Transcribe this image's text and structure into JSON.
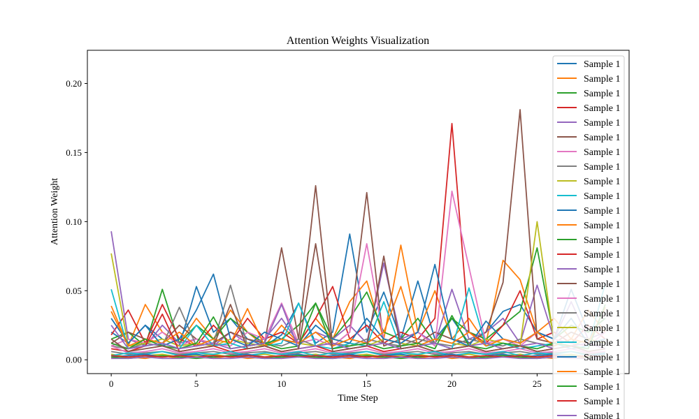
{
  "chart_data": {
    "type": "line",
    "title": "Attention Weights Visualization",
    "xlabel": "Time Step",
    "ylabel": "Attention Weight",
    "xlim": [
      -1.4,
      30.4
    ],
    "ylim": [
      -0.01,
      0.224
    ],
    "xticks": [
      0,
      5,
      10,
      15,
      20,
      25
    ],
    "xtick_labels": [
      "0",
      "5",
      "10",
      "15",
      "20",
      "25"
    ],
    "yticks": [
      0.0,
      0.05,
      0.1,
      0.15,
      0.2
    ],
    "ytick_labels": [
      "0.00",
      "0.05",
      "0.10",
      "0.15",
      "0.20"
    ],
    "grid": false,
    "legend_position": "top-right",
    "x": [
      0,
      1,
      2,
      3,
      4,
      5,
      6,
      7,
      8,
      9,
      10,
      11,
      12,
      13,
      14,
      15,
      16,
      17,
      18,
      19,
      20,
      21,
      22,
      23,
      24,
      25,
      26,
      27,
      28,
      29
    ],
    "series": [
      {
        "name": "Sample 1",
        "color": "#1f77b4",
        "values": [
          0.02,
          0.012,
          0.025,
          0.015,
          0.01,
          0.053,
          0.02,
          0.03,
          0.015,
          0.01,
          0.018,
          0.041,
          0.012,
          0.02,
          0.091,
          0.02,
          0.049,
          0.015,
          0.057,
          0.015,
          0.03,
          0.012,
          0.02,
          0.035,
          0.04,
          0.02,
          0.015,
          0.051,
          0.02,
          0.03
        ]
      },
      {
        "name": "Sample 1",
        "color": "#ff7f0e",
        "values": [
          0.039,
          0.01,
          0.04,
          0.02,
          0.012,
          0.03,
          0.015,
          0.036,
          0.02,
          0.01,
          0.025,
          0.012,
          0.03,
          0.015,
          0.042,
          0.057,
          0.015,
          0.083,
          0.02,
          0.05,
          0.015,
          0.03,
          0.012,
          0.072,
          0.058,
          0.02,
          0.03,
          0.015,
          0.036,
          0.02
        ]
      },
      {
        "name": "Sample 1",
        "color": "#2ca02c",
        "values": [
          0.015,
          0.02,
          0.01,
          0.051,
          0.012,
          0.025,
          0.015,
          0.03,
          0.02,
          0.012,
          0.015,
          0.025,
          0.041,
          0.015,
          0.03,
          0.049,
          0.02,
          0.015,
          0.03,
          0.012,
          0.03,
          0.02,
          0.015,
          0.025,
          0.035,
          0.081,
          0.015,
          0.025,
          0.02,
          0.03
        ]
      },
      {
        "name": "Sample 1",
        "color": "#d62728",
        "values": [
          0.018,
          0.036,
          0.012,
          0.04,
          0.015,
          0.01,
          0.025,
          0.012,
          0.03,
          0.015,
          0.02,
          0.012,
          0.03,
          0.053,
          0.015,
          0.025,
          0.012,
          0.02,
          0.015,
          0.03,
          0.171,
          0.02,
          0.012,
          0.025,
          0.05,
          0.015,
          0.02,
          0.012,
          0.025,
          0.015
        ]
      },
      {
        "name": "Sample 1",
        "color": "#9467bd",
        "values": [
          0.093,
          0.015,
          0.01,
          0.025,
          0.012,
          0.015,
          0.01,
          0.02,
          0.012,
          0.015,
          0.03,
          0.012,
          0.02,
          0.015,
          0.025,
          0.012,
          0.07,
          0.015,
          0.02,
          0.012,
          0.051,
          0.015,
          0.02,
          0.03,
          0.012,
          0.054,
          0.015,
          0.042,
          0.015,
          0.02
        ]
      },
      {
        "name": "Sample 1",
        "color": "#8c564b",
        "values": [
          0.012,
          0.02,
          0.015,
          0.012,
          0.025,
          0.015,
          0.012,
          0.02,
          0.015,
          0.012,
          0.081,
          0.015,
          0.126,
          0.01,
          0.02,
          0.121,
          0.01,
          0.015,
          0.012,
          0.02,
          0.015,
          0.012,
          0.02,
          0.056,
          0.181,
          0.015,
          0.012,
          0.02,
          0.015,
          0.012
        ]
      },
      {
        "name": "Sample 1",
        "color": "#e377c2",
        "values": [
          0.01,
          0.015,
          0.012,
          0.02,
          0.01,
          0.015,
          0.012,
          0.01,
          0.02,
          0.015,
          0.041,
          0.012,
          0.015,
          0.01,
          0.02,
          0.084,
          0.015,
          0.012,
          0.02,
          0.01,
          0.122,
          0.067,
          0.012,
          0.015,
          0.01,
          0.02,
          0.015,
          0.012,
          0.01,
          0.02
        ]
      },
      {
        "name": "Sample 1",
        "color": "#7f7f7f",
        "values": [
          0.01,
          0.008,
          0.012,
          0.01,
          0.038,
          0.01,
          0.012,
          0.054,
          0.01,
          0.012,
          0.01,
          0.015,
          0.01,
          0.012,
          0.01,
          0.015,
          0.012,
          0.01,
          0.015,
          0.012,
          0.01,
          0.015,
          0.012,
          0.01,
          0.015,
          0.012,
          0.01,
          0.015,
          0.012,
          0.01
        ]
      },
      {
        "name": "Sample 1",
        "color": "#bcbd22",
        "values": [
          0.077,
          0.01,
          0.012,
          0.015,
          0.01,
          0.012,
          0.01,
          0.015,
          0.012,
          0.01,
          0.015,
          0.012,
          0.01,
          0.015,
          0.012,
          0.01,
          0.015,
          0.012,
          0.01,
          0.015,
          0.012,
          0.01,
          0.015,
          0.012,
          0.01,
          0.1,
          0.012,
          0.01,
          0.015,
          0.012
        ]
      },
      {
        "name": "Sample 1",
        "color": "#17becf",
        "values": [
          0.051,
          0.008,
          0.01,
          0.012,
          0.008,
          0.025,
          0.01,
          0.012,
          0.008,
          0.01,
          0.012,
          0.041,
          0.01,
          0.008,
          0.012,
          0.01,
          0.042,
          0.008,
          0.01,
          0.012,
          0.008,
          0.052,
          0.01,
          0.012,
          0.008,
          0.01,
          0.012,
          0.008,
          0.01,
          0.055
        ]
      },
      {
        "name": "Sample 1",
        "color": "#1f77b4",
        "values": [
          0.03,
          0.012,
          0.025,
          0.01,
          0.015,
          0.036,
          0.062,
          0.015,
          0.01,
          0.02,
          0.015,
          0.01,
          0.025,
          0.015,
          0.012,
          0.03,
          0.015,
          0.012,
          0.02,
          0.069,
          0.015,
          0.01,
          0.028,
          0.015,
          0.012,
          0.02,
          0.015,
          0.03,
          0.012,
          0.015
        ]
      },
      {
        "name": "Sample 1",
        "color": "#ff7f0e",
        "values": [
          0.035,
          0.01,
          0.015,
          0.012,
          0.02,
          0.01,
          0.015,
          0.012,
          0.037,
          0.01,
          0.015,
          0.012,
          0.02,
          0.01,
          0.015,
          0.012,
          0.02,
          0.053,
          0.01,
          0.015,
          0.012,
          0.02,
          0.01,
          0.015,
          0.012,
          0.02,
          0.01,
          0.015,
          0.012,
          0.038
        ]
      },
      {
        "name": "Sample 1",
        "color": "#2ca02c",
        "values": [
          0.012,
          0.008,
          0.015,
          0.01,
          0.008,
          0.012,
          0.031,
          0.008,
          0.01,
          0.012,
          0.008,
          0.01,
          0.041,
          0.008,
          0.01,
          0.012,
          0.008,
          0.01,
          0.012,
          0.008,
          0.032,
          0.01,
          0.008,
          0.012,
          0.01,
          0.008,
          0.012,
          0.01,
          0.008,
          0.04
        ]
      },
      {
        "name": "Sample 1",
        "color": "#d62728",
        "values": [
          0.008,
          0.006,
          0.01,
          0.033,
          0.006,
          0.008,
          0.01,
          0.006,
          0.008,
          0.01,
          0.006,
          0.008,
          0.01,
          0.006,
          0.008,
          0.01,
          0.006,
          0.008,
          0.01,
          0.006,
          0.008,
          0.01,
          0.006,
          0.008,
          0.01,
          0.006,
          0.008,
          0.01,
          0.006,
          0.008
        ]
      },
      {
        "name": "Sample 1",
        "color": "#9467bd",
        "values": [
          0.025,
          0.008,
          0.01,
          0.012,
          0.008,
          0.01,
          0.012,
          0.008,
          0.01,
          0.012,
          0.04,
          0.008,
          0.01,
          0.012,
          0.008,
          0.01,
          0.012,
          0.008,
          0.01,
          0.012,
          0.008,
          0.01,
          0.012,
          0.008,
          0.01,
          0.012,
          0.008,
          0.01,
          0.012,
          0.008
        ]
      },
      {
        "name": "Sample 1",
        "color": "#8c564b",
        "values": [
          0.015,
          0.006,
          0.008,
          0.01,
          0.006,
          0.008,
          0.01,
          0.04,
          0.008,
          0.01,
          0.006,
          0.008,
          0.084,
          0.006,
          0.008,
          0.01,
          0.075,
          0.008,
          0.01,
          0.006,
          0.008,
          0.01,
          0.006,
          0.008,
          0.01,
          0.006,
          0.008,
          0.01,
          0.006,
          0.008
        ]
      },
      {
        "name": "Sample 1",
        "color": "#e377c2",
        "values": [
          0.01,
          0.005,
          0.006,
          0.008,
          0.005,
          0.006,
          0.008,
          0.005,
          0.006,
          0.008,
          0.005,
          0.006,
          0.008,
          0.005,
          0.006,
          0.008,
          0.005,
          0.006,
          0.008,
          0.005,
          0.006,
          0.008,
          0.005,
          0.006,
          0.008,
          0.005,
          0.006,
          0.008,
          0.005,
          0.006
        ]
      },
      {
        "name": "Sample 1",
        "color": "#7f7f7f",
        "values": [
          0.006,
          0.004,
          0.005,
          0.006,
          0.004,
          0.005,
          0.006,
          0.004,
          0.005,
          0.006,
          0.004,
          0.005,
          0.006,
          0.004,
          0.005,
          0.006,
          0.004,
          0.005,
          0.006,
          0.004,
          0.005,
          0.006,
          0.004,
          0.005,
          0.006,
          0.004,
          0.005,
          0.006,
          0.004,
          0.005
        ]
      },
      {
        "name": "Sample 1",
        "color": "#bcbd22",
        "values": [
          0.004,
          0.002,
          0.003,
          0.004,
          0.002,
          0.003,
          0.004,
          0.002,
          0.003,
          0.004,
          0.002,
          0.003,
          0.004,
          0.002,
          0.003,
          0.004,
          0.002,
          0.003,
          0.004,
          0.002,
          0.003,
          0.004,
          0.002,
          0.003,
          0.004,
          0.002,
          0.003,
          0.004,
          0.002,
          0.003
        ]
      },
      {
        "name": "Sample 1",
        "color": "#17becf",
        "values": [
          0.003,
          0.005,
          0.004,
          0.006,
          0.003,
          0.005,
          0.004,
          0.006,
          0.003,
          0.005,
          0.004,
          0.006,
          0.003,
          0.005,
          0.004,
          0.006,
          0.003,
          0.005,
          0.004,
          0.006,
          0.003,
          0.005,
          0.004,
          0.006,
          0.003,
          0.005,
          0.004,
          0.006,
          0.003,
          0.005
        ]
      },
      {
        "name": "Sample 1",
        "color": "#1f77b4",
        "values": [
          0.002,
          0.003,
          0.004,
          0.002,
          0.003,
          0.004,
          0.002,
          0.003,
          0.004,
          0.002,
          0.003,
          0.004,
          0.002,
          0.003,
          0.004,
          0.002,
          0.003,
          0.004,
          0.002,
          0.003,
          0.004,
          0.002,
          0.003,
          0.004,
          0.002,
          0.003,
          0.004,
          0.002,
          0.003,
          0.004
        ]
      },
      {
        "name": "Sample 1",
        "color": "#ff7f0e",
        "values": [
          0.001,
          0.002,
          0.001,
          0.003,
          0.001,
          0.002,
          0.001,
          0.003,
          0.001,
          0.002,
          0.001,
          0.003,
          0.001,
          0.002,
          0.001,
          0.003,
          0.001,
          0.002,
          0.001,
          0.003,
          0.001,
          0.002,
          0.001,
          0.003,
          0.001,
          0.002,
          0.001,
          0.003,
          0.001,
          0.002
        ]
      },
      {
        "name": "Sample 1",
        "color": "#2ca02c",
        "values": [
          0.002,
          0.001,
          0.002,
          0.003,
          0.002,
          0.001,
          0.002,
          0.003,
          0.002,
          0.001,
          0.002,
          0.003,
          0.002,
          0.001,
          0.002,
          0.003,
          0.002,
          0.001,
          0.002,
          0.003,
          0.002,
          0.001,
          0.002,
          0.003,
          0.002,
          0.001,
          0.002,
          0.003,
          0.002,
          0.001
        ]
      },
      {
        "name": "Sample 1",
        "color": "#d62728",
        "values": [
          0.003,
          0.002,
          0.003,
          0.002,
          0.003,
          0.002,
          0.003,
          0.002,
          0.003,
          0.002,
          0.003,
          0.002,
          0.003,
          0.002,
          0.003,
          0.002,
          0.003,
          0.002,
          0.003,
          0.002,
          0.003,
          0.002,
          0.003,
          0.002,
          0.003,
          0.002,
          0.003,
          0.002,
          0.003,
          0.002
        ]
      },
      {
        "name": "Sample 1",
        "color": "#9467bd",
        "values": [
          0.001,
          0.001,
          0.002,
          0.001,
          0.001,
          0.002,
          0.001,
          0.001,
          0.002,
          0.001,
          0.001,
          0.002,
          0.001,
          0.001,
          0.002,
          0.001,
          0.001,
          0.002,
          0.001,
          0.001,
          0.002,
          0.001,
          0.001,
          0.002,
          0.001,
          0.001,
          0.002,
          0.001,
          0.001,
          0.002
        ]
      }
    ]
  }
}
